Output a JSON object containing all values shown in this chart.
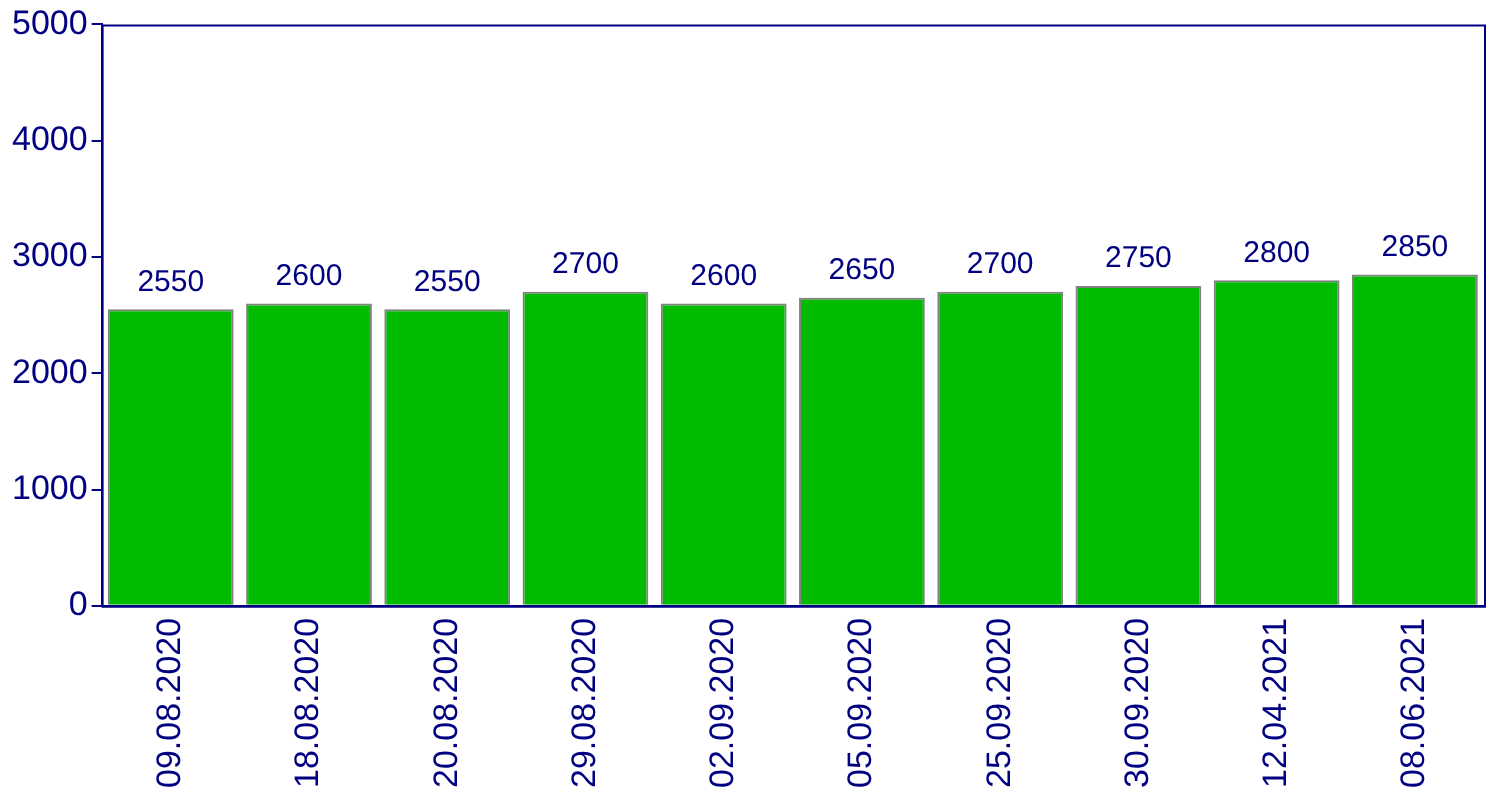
{
  "chart_data": {
    "type": "bar",
    "categories": [
      "09.08.2020",
      "18.08.2020",
      "20.08.2020",
      "29.08.2020",
      "02.09.2020",
      "05.09.2020",
      "25.09.2020",
      "30.09.2020",
      "12.04.2021",
      "08.06.2021"
    ],
    "values": [
      2550,
      2600,
      2550,
      2700,
      2600,
      2650,
      2700,
      2750,
      2800,
      2850
    ],
    "color": "#00bb00",
    "ylim": [
      0,
      5000
    ],
    "yticks": [
      0,
      1000,
      2000,
      3000,
      4000,
      5000
    ],
    "grid": false,
    "legend": false,
    "data_labels": true
  }
}
